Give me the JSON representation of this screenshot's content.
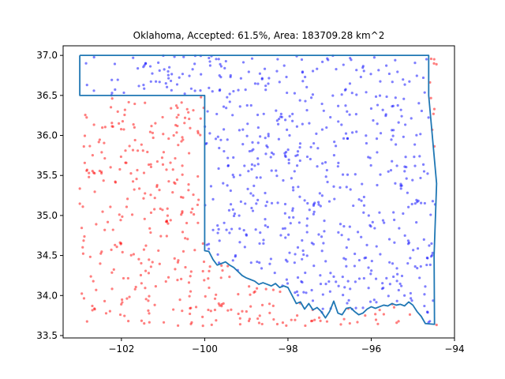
{
  "chart_data": {
    "type": "scatter",
    "title": "Oklahoma, Accepted: 61.5%, Area: 183709.28 km^2",
    "xlabel": "",
    "ylabel": "",
    "xlim": [
      -103.4,
      -94.0
    ],
    "ylim": [
      33.47,
      37.12
    ],
    "x_ticks": [
      -102,
      -100,
      -98,
      -96,
      -94
    ],
    "x_tick_labels": [
      "−102",
      "−100",
      "−98",
      "−96",
      "−94"
    ],
    "y_ticks": [
      33.5,
      34.0,
      34.5,
      35.0,
      35.5,
      36.0,
      36.5,
      37.0
    ],
    "y_tick_labels": [
      "33.5",
      "34.0",
      "34.5",
      "35.0",
      "35.5",
      "36.0",
      "36.5",
      "37.0"
    ],
    "grid": false,
    "legend": "none",
    "colors": {
      "accepted": "#0000ff",
      "rejected": "#ff0000",
      "boundary": "#1f77b4"
    },
    "sample_counts": {
      "total": 1000,
      "accepted_fraction": 0.615
    },
    "series": [
      {
        "role": "boundary-outline",
        "type": "line",
        "points": [
          [
            -103.0,
            37.0
          ],
          [
            -94.62,
            37.0
          ],
          [
            -94.62,
            36.5
          ],
          [
            -94.43,
            35.4
          ],
          [
            -94.49,
            34.5
          ],
          [
            -94.48,
            33.64
          ],
          [
            -94.7,
            33.65
          ],
          [
            -94.8,
            33.74
          ],
          [
            -94.9,
            33.8
          ],
          [
            -95.0,
            33.88
          ],
          [
            -95.1,
            33.92
          ],
          [
            -95.2,
            33.87
          ],
          [
            -95.3,
            33.89
          ],
          [
            -95.4,
            33.88
          ],
          [
            -95.5,
            33.9
          ],
          [
            -95.6,
            33.87
          ],
          [
            -95.7,
            33.88
          ],
          [
            -95.8,
            33.86
          ],
          [
            -95.9,
            33.84
          ],
          [
            -96.0,
            33.86
          ],
          [
            -96.1,
            33.83
          ],
          [
            -96.2,
            33.78
          ],
          [
            -96.3,
            33.76
          ],
          [
            -96.4,
            33.8
          ],
          [
            -96.5,
            33.85
          ],
          [
            -96.6,
            33.84
          ],
          [
            -96.7,
            33.76
          ],
          [
            -96.8,
            33.78
          ],
          [
            -96.9,
            33.93
          ],
          [
            -97.0,
            33.8
          ],
          [
            -97.1,
            33.72
          ],
          [
            -97.2,
            33.8
          ],
          [
            -97.3,
            33.85
          ],
          [
            -97.4,
            33.82
          ],
          [
            -97.5,
            33.9
          ],
          [
            -97.6,
            33.83
          ],
          [
            -97.7,
            33.92
          ],
          [
            -97.8,
            33.9
          ],
          [
            -97.9,
            34.0
          ],
          [
            -98.0,
            34.1
          ],
          [
            -98.1,
            34.12
          ],
          [
            -98.2,
            34.1
          ],
          [
            -98.3,
            34.15
          ],
          [
            -98.4,
            34.12
          ],
          [
            -98.5,
            34.14
          ],
          [
            -98.6,
            34.16
          ],
          [
            -98.7,
            34.14
          ],
          [
            -98.8,
            34.18
          ],
          [
            -98.9,
            34.2
          ],
          [
            -99.0,
            34.22
          ],
          [
            -99.1,
            34.25
          ],
          [
            -99.2,
            34.3
          ],
          [
            -99.3,
            34.35
          ],
          [
            -99.4,
            34.38
          ],
          [
            -99.5,
            34.42
          ],
          [
            -99.6,
            34.4
          ],
          [
            -99.7,
            34.38
          ],
          [
            -99.8,
            34.45
          ],
          [
            -99.9,
            34.55
          ],
          [
            -100.0,
            34.56
          ],
          [
            -100.0,
            36.5
          ],
          [
            -103.0,
            36.5
          ],
          [
            -103.0,
            37.0
          ]
        ]
      }
    ]
  }
}
